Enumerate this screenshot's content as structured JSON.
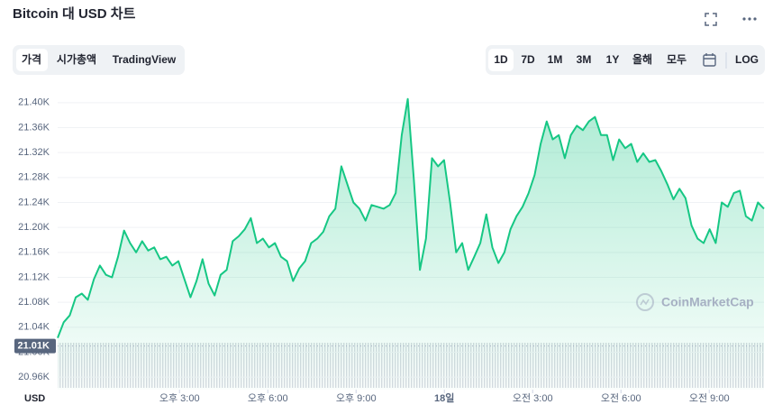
{
  "header": {
    "title": "Bitcoin 대 USD 차트"
  },
  "tabs": [
    "가격",
    "시가총액",
    "TradingView"
  ],
  "ranges": [
    "1D",
    "7D",
    "1M",
    "3M",
    "1Y",
    "올해",
    "모두",
    "LOG"
  ],
  "chart_data": {
    "type": "area",
    "x_axis_label": "USD",
    "watermark": "CoinMarketCap",
    "xlim": [
      10.86,
      34.86
    ],
    "xticks": [
      {
        "value": 15,
        "label": "오후 3:00"
      },
      {
        "value": 18,
        "label": "오후 6:00"
      },
      {
        "value": 21,
        "label": "오후 9:00"
      },
      {
        "value": 24,
        "label": "18일"
      },
      {
        "value": 27,
        "label": "오전 3:00"
      },
      {
        "value": 30,
        "label": "오전 6:00"
      },
      {
        "value": 33,
        "label": "오전 9:00"
      }
    ],
    "ylim": [
      20940,
      21420
    ],
    "yticks": [
      {
        "value": 20960,
        "label": "20.96K"
      },
      {
        "value": 21000,
        "label": "21.00K"
      },
      {
        "value": 21040,
        "label": "21.04K"
      },
      {
        "value": 21080,
        "label": "21.08K"
      },
      {
        "value": 21120,
        "label": "21.12K"
      },
      {
        "value": 21160,
        "label": "21.16K"
      },
      {
        "value": 21200,
        "label": "21.20K"
      },
      {
        "value": 21240,
        "label": "21.24K"
      },
      {
        "value": 21280,
        "label": "21.28K"
      },
      {
        "value": 21320,
        "label": "21.32K"
      },
      {
        "value": 21360,
        "label": "21.36K"
      },
      {
        "value": 21400,
        "label": "21.40K"
      }
    ],
    "grid": true,
    "reference": {
      "value": 21010,
      "label": "21.01K"
    },
    "series": [
      {
        "name": "Bitcoin",
        "color": "#16c784",
        "values": [
          21023,
          21048,
          21059,
          21088,
          21094,
          21084,
          21117,
          21139,
          21124,
          21120,
          21153,
          21195,
          21175,
          21160,
          21178,
          21163,
          21168,
          21149,
          21153,
          21139,
          21146,
          21117,
          21088,
          21114,
          21149,
          21110,
          21091,
          21124,
          21132,
          21178,
          21186,
          21197,
          21215,
          21175,
          21182,
          21168,
          21175,
          21153,
          21146,
          21114,
          21134,
          21146,
          21175,
          21182,
          21193,
          21218,
          21230,
          21298,
          21269,
          21240,
          21230,
          21211,
          21236,
          21233,
          21230,
          21236,
          21255,
          21348,
          21406,
          21276,
          21132,
          21182,
          21311,
          21298,
          21308,
          21240,
          21160,
          21175,
          21132,
          21153,
          21175,
          21221,
          21168,
          21143,
          21160,
          21197,
          21218,
          21233,
          21255,
          21284,
          21334,
          21370,
          21341,
          21348,
          21311,
          21348,
          21363,
          21356,
          21370,
          21377,
          21348,
          21348,
          21308,
          21341,
          21327,
          21334,
          21305,
          21319,
          21305,
          21308,
          21290,
          21269,
          21245,
          21262,
          21247,
          21203,
          21182,
          21175,
          21197,
          21175,
          21240,
          21233,
          21255,
          21259,
          21218,
          21211,
          21240,
          21230
        ]
      }
    ]
  }
}
